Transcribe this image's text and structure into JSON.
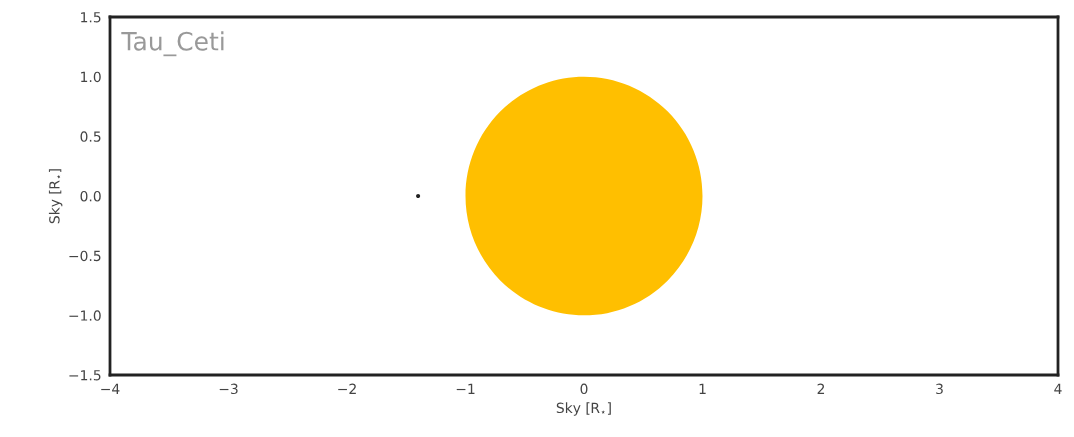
{
  "chart_data": {
    "type": "bubble",
    "x": [
      -1.4,
      0
    ],
    "values": [
      0,
      0
    ],
    "sizes": [
      0.0003,
      1
    ],
    "colors": [
      "#222222",
      "#ffbf00"
    ],
    "xlim": [
      -4,
      4
    ],
    "ylim": [
      -1.5,
      1.5
    ],
    "xticks": [
      {
        "value": -4,
        "label": "−4"
      },
      {
        "value": -3,
        "label": "−3"
      },
      {
        "value": -2,
        "label": "−2"
      },
      {
        "value": -1,
        "label": "−1"
      },
      0,
      1,
      2,
      3,
      4
    ],
    "yticks": [
      {
        "value": -1.5,
        "label": "−1.5"
      },
      {
        "value": -1.0,
        "label": "−1.0"
      },
      {
        "value": -0.5,
        "label": "−0.5"
      },
      {
        "value": 0.0,
        "label": "0.0"
      },
      {
        "value": 0.5,
        "label": "0.5"
      },
      {
        "value": 1.0,
        "label": "1.0"
      },
      {
        "value": 1.5,
        "label": "1.5"
      }
    ],
    "xlabel": "Sky [R$_{⋆}$]",
    "ylabel": "Sky [R$_{⋆}$]",
    "annotations": [
      "Tau_Ceti"
    ],
    "grid": false
  }
}
